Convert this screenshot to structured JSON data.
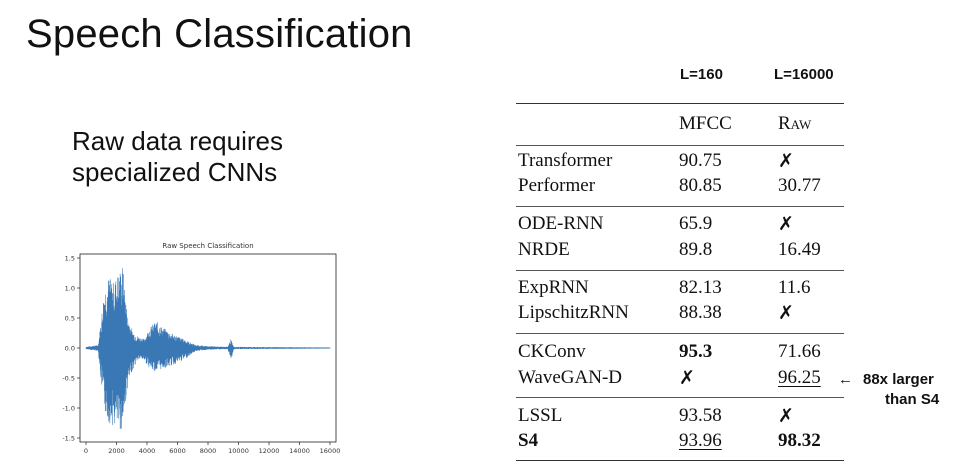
{
  "slide": {
    "title": "Speech Classification",
    "subtitle_lines": [
      "Raw data requires",
      "specialized CNNs"
    ]
  },
  "table": {
    "col_group_headers": [
      "L=160",
      "L=16000"
    ],
    "col_headers": [
      "MFCC",
      "Raw"
    ],
    "groups": [
      {
        "rows": [
          {
            "model": "Transformer",
            "mfcc": "90.75",
            "raw": "✗"
          },
          {
            "model": "Performer",
            "mfcc": "80.85",
            "raw": "30.77"
          }
        ]
      },
      {
        "rows": [
          {
            "model": "ODE-RNN",
            "mfcc": "65.9",
            "raw": "✗"
          },
          {
            "model": "NRDE",
            "mfcc": "89.8",
            "raw": "16.49"
          }
        ]
      },
      {
        "rows": [
          {
            "model": "ExpRNN",
            "mfcc": "82.13",
            "raw": "11.6"
          },
          {
            "model": "LipschitzRNN",
            "mfcc": "88.38",
            "raw": "✗"
          }
        ]
      },
      {
        "rows": [
          {
            "model": "CKConv",
            "mfcc": "95.3",
            "raw": "71.66"
          },
          {
            "model": "WaveGAN-D",
            "mfcc": "✗",
            "raw": "96.25"
          }
        ]
      },
      {
        "rows": [
          {
            "model": "LSSL",
            "mfcc": "93.58",
            "raw": "✗"
          },
          {
            "model": "S4",
            "mfcc": "93.96",
            "raw": "98.32"
          }
        ]
      }
    ],
    "annotation": {
      "arrow": "←",
      "line1": "88x larger",
      "line2": "than S4"
    }
  },
  "chart_data": {
    "type": "line",
    "title": "Raw Speech Classification",
    "xlabel": "",
    "ylabel": "",
    "xlim": [
      0,
      16000
    ],
    "ylim": [
      -1.5,
      1.5
    ],
    "x_ticks": [
      "0",
      "2000",
      "4000",
      "6000",
      "8000",
      "10000",
      "12000",
      "14000",
      "16000"
    ],
    "y_ticks": [
      "1.5",
      "1.0",
      "0.5",
      "0.0",
      "-0.5",
      "-1.0",
      "-1.5"
    ],
    "series": [
      {
        "color": "#3a78b5",
        "envelope": [
          {
            "x": 0,
            "upper": 0.02,
            "lower": -0.02
          },
          {
            "x": 800,
            "upper": 0.05,
            "lower": -0.05
          },
          {
            "x": 1000,
            "upper": 0.5,
            "lower": -0.6
          },
          {
            "x": 1200,
            "upper": 1.0,
            "lower": -1.05
          },
          {
            "x": 1500,
            "upper": 1.2,
            "lower": -1.25
          },
          {
            "x": 1800,
            "upper": 1.1,
            "lower": -1.3
          },
          {
            "x": 2200,
            "upper": 1.3,
            "lower": -1.4
          },
          {
            "x": 2400,
            "upper": 1.4,
            "lower": -1.35
          },
          {
            "x": 2700,
            "upper": 0.6,
            "lower": -0.7
          },
          {
            "x": 3000,
            "upper": 0.3,
            "lower": -0.4
          },
          {
            "x": 3400,
            "upper": 0.2,
            "lower": -0.2
          },
          {
            "x": 3800,
            "upper": 0.15,
            "lower": -0.2
          },
          {
            "x": 4200,
            "upper": 0.35,
            "lower": -0.35
          },
          {
            "x": 4600,
            "upper": 0.45,
            "lower": -0.4
          },
          {
            "x": 5000,
            "upper": 0.35,
            "lower": -0.35
          },
          {
            "x": 5600,
            "upper": 0.25,
            "lower": -0.3
          },
          {
            "x": 6400,
            "upper": 0.15,
            "lower": -0.2
          },
          {
            "x": 7200,
            "upper": 0.05,
            "lower": -0.05
          },
          {
            "x": 8000,
            "upper": 0.03,
            "lower": -0.03
          },
          {
            "x": 9300,
            "upper": 0.02,
            "lower": -0.02
          },
          {
            "x": 9500,
            "upper": 0.15,
            "lower": -0.2
          },
          {
            "x": 9700,
            "upper": 0.02,
            "lower": -0.02
          },
          {
            "x": 16000,
            "upper": 0.01,
            "lower": -0.01
          }
        ]
      }
    ]
  }
}
